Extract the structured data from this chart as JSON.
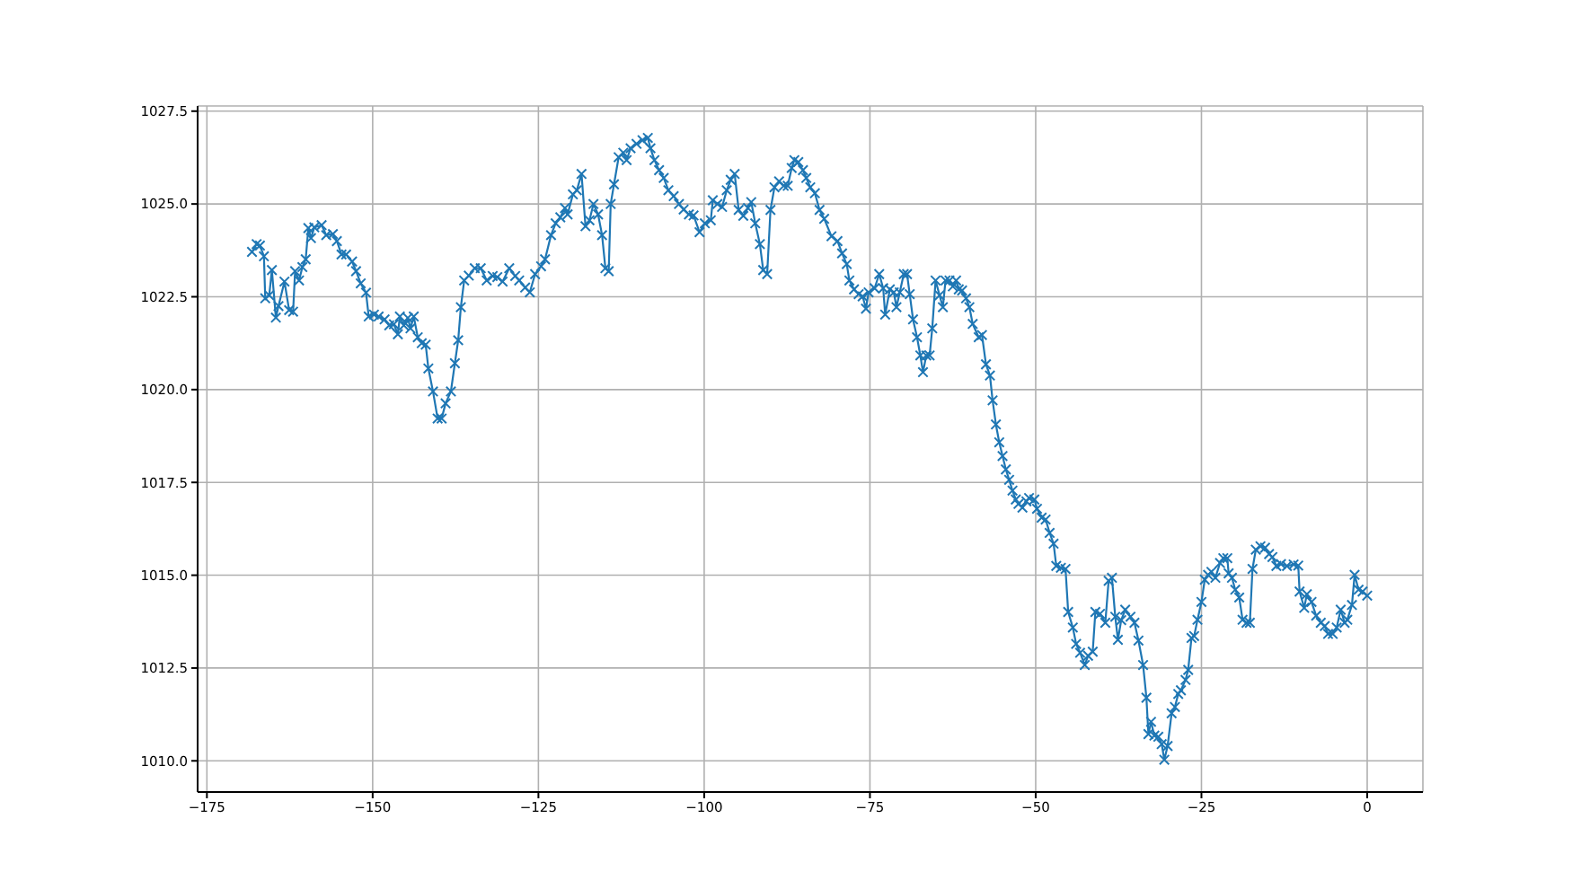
{
  "chart_data": {
    "type": "line",
    "color": "#1f77b4",
    "marker": "cross",
    "grid": true,
    "xlim": [
      -176.4,
      8.4
    ],
    "ylim": [
      1009.16,
      1027.64
    ],
    "xticks": [
      {
        "value": -175,
        "label": "−175"
      },
      {
        "value": -150,
        "label": "−150"
      },
      {
        "value": -125,
        "label": "−125"
      },
      {
        "value": -100,
        "label": "−100"
      },
      {
        "value": -75,
        "label": "−75"
      },
      {
        "value": -50,
        "label": "−50"
      },
      {
        "value": -25,
        "label": "−25"
      },
      0
    ],
    "yticks": [
      {
        "value": 1010,
        "label": "1010.0"
      },
      1012.5,
      {
        "value": 1015,
        "label": "1015.0"
      },
      1017.5,
      {
        "value": 1020,
        "label": "1020.0"
      },
      1022.5,
      {
        "value": 1025,
        "label": "1025.0"
      },
      1027.5
    ],
    "x": [
      -168.2,
      -167.5,
      -167.0,
      -166.4,
      -166.2,
      -165.6,
      -165.2,
      -164.6,
      -164.2,
      -163.3,
      -162.6,
      -162.0,
      -161.7,
      -161.1,
      -160.6,
      -160.1,
      -159.7,
      -159.3,
      -158.8,
      -157.7,
      -157.0,
      -156.0,
      -155.4,
      -154.7,
      -154.0,
      -153.1,
      -152.5,
      -151.8,
      -151.0,
      -150.6,
      -149.8,
      -149.1,
      -148.2,
      -147.5,
      -146.8,
      -146.2,
      -145.9,
      -145.3,
      -144.7,
      -144.3,
      -143.8,
      -143.2,
      -142.6,
      -142.0,
      -141.6,
      -140.9,
      -140.2,
      -139.6,
      -139.0,
      -138.2,
      -137.6,
      -137.1,
      -136.7,
      -136.2,
      -135.5,
      -134.6,
      -133.7,
      -132.8,
      -131.9,
      -131.2,
      -130.4,
      -129.4,
      -128.5,
      -127.9,
      -127.0,
      -126.3,
      -125.5,
      -124.6,
      -124.0,
      -123.1,
      -122.4,
      -121.7,
      -121.0,
      -120.6,
      -119.8,
      -119.2,
      -118.5,
      -117.9,
      -117.3,
      -116.7,
      -116.0,
      -115.4,
      -114.9,
      -114.4,
      -114.1,
      -113.6,
      -112.9,
      -112.2,
      -111.7,
      -111.1,
      -110.2,
      -109.3,
      -108.5,
      -108.1,
      -107.5,
      -106.8,
      -106.1,
      -105.4,
      -104.6,
      -103.8,
      -103.1,
      -102.3,
      -101.6,
      -100.7,
      -99.9,
      -99.0,
      -98.7,
      -98.0,
      -97.3,
      -96.6,
      -96.0,
      -95.4,
      -94.8,
      -94.1,
      -93.4,
      -92.9,
      -92.3,
      -91.6,
      -91.1,
      -90.5,
      -90.0,
      -89.4,
      -88.7,
      -88.0,
      -87.4,
      -86.8,
      -86.4,
      -85.8,
      -85.1,
      -84.6,
      -84.0,
      -83.3,
      -82.6,
      -81.9,
      -80.8,
      -79.9,
      -79.2,
      -78.5,
      -78.1,
      -77.4,
      -76.7,
      -76.1,
      -75.6,
      -75.2,
      -74.3,
      -73.6,
      -73.0,
      -72.7,
      -72.0,
      -71.4,
      -71.0,
      -70.5,
      -69.9,
      -69.4,
      -69.0,
      -68.5,
      -67.9,
      -67.4,
      -67.0,
      -66.5,
      -66.0,
      -65.6,
      -65.1,
      -64.5,
      -64.0,
      -63.6,
      -63.0,
      -62.5,
      -62.0,
      -61.6,
      -61.1,
      -60.5,
      -60.0,
      -59.5,
      -58.6,
      -58.1,
      -57.5,
      -56.9,
      -56.5,
      -56.0,
      -55.5,
      -55.0,
      -54.5,
      -54.0,
      -53.5,
      -53.0,
      -52.6,
      -52.0,
      -51.4,
      -51.0,
      -50.2,
      -49.8,
      -49.1,
      -48.5,
      -47.9,
      -47.3,
      -46.9,
      -46.2,
      -45.5,
      -45.1,
      -44.4,
      -43.9,
      -43.3,
      -42.6,
      -42.1,
      -41.4,
      -41.0,
      -40.3,
      -39.5,
      -39.0,
      -38.5,
      -38.0,
      -37.6,
      -37.1,
      -36.5,
      -35.7,
      -35.1,
      -34.5,
      -33.8,
      -33.3,
      -33.0,
      -32.6,
      -32.1,
      -31.5,
      -31.0,
      -30.6,
      -30.1,
      -29.5,
      -29.0,
      -28.5,
      -28.1,
      -27.4,
      -27.0,
      -26.5,
      -26.1,
      -25.6,
      -25.0,
      -24.5,
      -24.0,
      -23.5,
      -22.9,
      -22.2,
      -21.7,
      -21.1,
      -20.9,
      -20.4,
      -19.9,
      -19.3,
      -18.8,
      -18.2,
      -17.7,
      -17.3,
      -16.8,
      -16.1,
      -15.4,
      -14.8,
      -14.3,
      -13.7,
      -13.0,
      -12.1,
      -11.1,
      -10.4,
      -10.2,
      -9.5,
      -9.1,
      -8.4,
      -7.7,
      -7.0,
      -6.4,
      -5.9,
      -5.2,
      -4.6,
      -4.0,
      -3.4,
      -3.0,
      -2.3,
      -1.9,
      -1.3,
      -0.7,
      0.0
    ],
    "values": [
      1023.71,
      1023.92,
      1023.88,
      1023.59,
      1022.46,
      1022.54,
      1023.22,
      1021.94,
      1022.25,
      1022.91,
      1022.14,
      1022.1,
      1023.19,
      1022.94,
      1023.3,
      1023.51,
      1024.35,
      1024.08,
      1024.37,
      1024.43,
      1024.16,
      1024.19,
      1024.0,
      1023.64,
      1023.64,
      1023.45,
      1023.19,
      1022.86,
      1022.61,
      1021.97,
      1022.02,
      1021.97,
      1021.89,
      1021.73,
      1021.76,
      1021.49,
      1021.97,
      1021.73,
      1021.93,
      1021.65,
      1021.97,
      1021.41,
      1021.25,
      1021.21,
      1020.57,
      1019.95,
      1019.22,
      1019.22,
      1019.63,
      1019.95,
      1020.71,
      1021.33,
      1022.22,
      1022.94,
      1023.07,
      1023.27,
      1023.27,
      1022.94,
      1023.06,
      1023.03,
      1022.91,
      1023.27,
      1023.06,
      1022.94,
      1022.75,
      1022.62,
      1023.11,
      1023.32,
      1023.51,
      1024.16,
      1024.48,
      1024.64,
      1024.89,
      1024.72,
      1025.26,
      1025.37,
      1025.81,
      1024.4,
      1024.56,
      1025.0,
      1024.72,
      1024.16,
      1023.27,
      1023.19,
      1025.0,
      1025.53,
      1026.26,
      1026.38,
      1026.18,
      1026.5,
      1026.62,
      1026.72,
      1026.78,
      1026.5,
      1026.18,
      1025.91,
      1025.7,
      1025.37,
      1025.21,
      1025.0,
      1024.85,
      1024.72,
      1024.69,
      1024.24,
      1024.48,
      1024.56,
      1025.1,
      1025.0,
      1024.92,
      1025.37,
      1025.65,
      1025.81,
      1024.84,
      1024.68,
      1024.89,
      1025.05,
      1024.48,
      1023.92,
      1023.22,
      1023.11,
      1024.84,
      1025.45,
      1025.61,
      1025.49,
      1025.49,
      1025.97,
      1026.18,
      1026.13,
      1025.91,
      1025.7,
      1025.45,
      1025.29,
      1024.84,
      1024.6,
      1024.13,
      1024.0,
      1023.67,
      1023.38,
      1022.94,
      1022.7,
      1022.57,
      1022.51,
      1022.18,
      1022.62,
      1022.73,
      1023.11,
      1022.73,
      1022.02,
      1022.7,
      1022.62,
      1022.22,
      1022.62,
      1023.11,
      1023.11,
      1022.57,
      1021.89,
      1021.41,
      1020.92,
      1020.47,
      1020.92,
      1020.92,
      1021.65,
      1022.94,
      1022.54,
      1022.22,
      1022.94,
      1022.94,
      1022.78,
      1022.94,
      1022.7,
      1022.67,
      1022.46,
      1022.22,
      1021.77,
      1021.41,
      1021.47,
      1020.68,
      1020.38,
      1019.71,
      1019.06,
      1018.58,
      1018.21,
      1017.85,
      1017.57,
      1017.28,
      1017.04,
      1016.92,
      1016.82,
      1016.99,
      1017.08,
      1017.04,
      1016.79,
      1016.55,
      1016.5,
      1016.14,
      1015.85,
      1015.25,
      1015.2,
      1015.17,
      1014.01,
      1013.59,
      1013.15,
      1012.91,
      1012.58,
      1012.83,
      1012.94,
      1014.01,
      1013.96,
      1013.72,
      1014.85,
      1014.93,
      1013.88,
      1013.26,
      1013.79,
      1014.07,
      1013.88,
      1013.72,
      1013.24,
      1012.58,
      1011.7,
      1010.72,
      1011.05,
      1010.68,
      1010.65,
      1010.45,
      1010.03,
      1010.4,
      1011.28,
      1011.45,
      1011.8,
      1011.9,
      1012.18,
      1012.45,
      1013.31,
      1013.36,
      1013.8,
      1014.28,
      1014.88,
      1015.01,
      1015.09,
      1014.93,
      1015.33,
      1015.46,
      1015.46,
      1015.05,
      1014.93,
      1014.61,
      1014.4,
      1013.8,
      1013.72,
      1013.72,
      1015.17,
      1015.69,
      1015.78,
      1015.74,
      1015.57,
      1015.49,
      1015.25,
      1015.3,
      1015.25,
      1015.29,
      1015.26,
      1014.56,
      1014.12,
      1014.49,
      1014.28,
      1013.91,
      1013.72,
      1013.63,
      1013.42,
      1013.42,
      1013.59,
      1014.07,
      1013.72,
      1013.8,
      1014.2,
      1015.01,
      1014.61,
      1014.56,
      1014.45
    ]
  }
}
